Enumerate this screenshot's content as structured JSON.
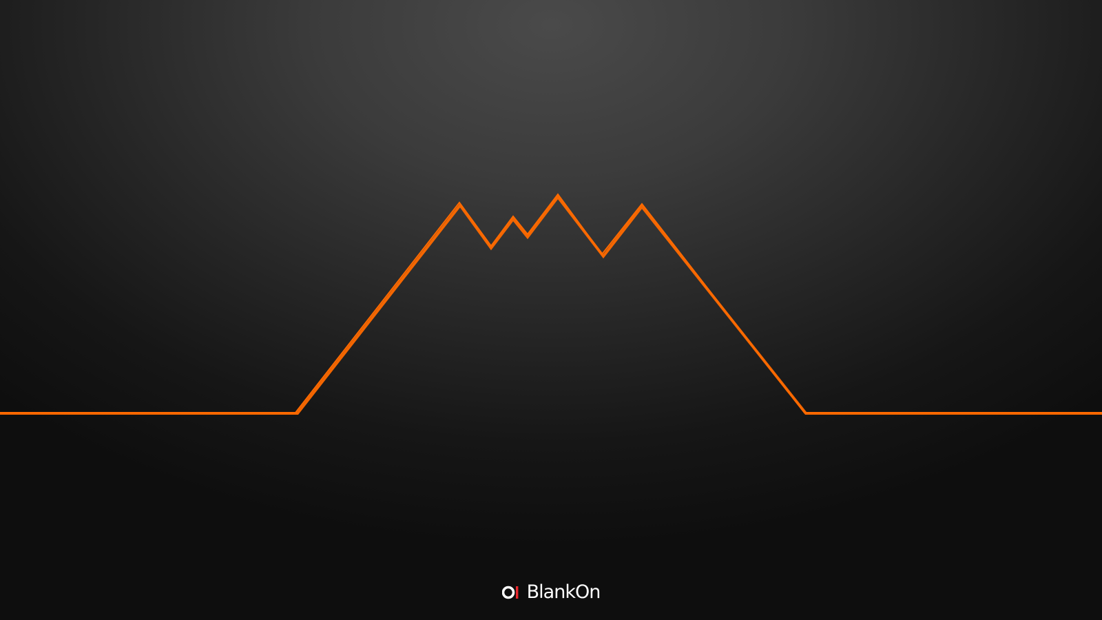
{
  "wallpaper": {
    "accent_color": "#ff6a00",
    "logo_mark_color": "#e8262b",
    "background_top": "#4a4a4a",
    "background_bottom": "#0e0e0e"
  },
  "brand": {
    "icon": "blankon-logo-icon",
    "name": "BlankOn"
  }
}
